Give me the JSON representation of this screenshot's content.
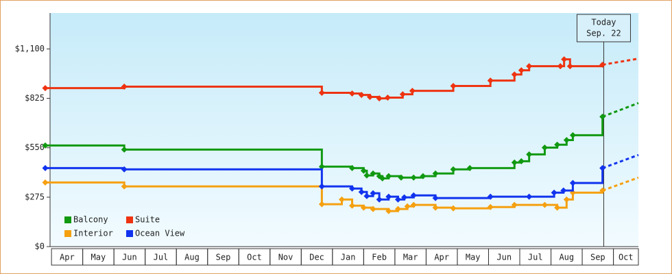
{
  "chart_data": {
    "type": "line",
    "step": true,
    "xlim": [
      -0.2,
      18.8
    ],
    "xticks": [
      {
        "value": 0.5,
        "label": "Apr"
      },
      {
        "value": 1.5,
        "label": "May"
      },
      {
        "value": 2.5,
        "label": "Jun"
      },
      {
        "value": 3.5,
        "label": "Jul"
      },
      {
        "value": 4.5,
        "label": "Aug"
      },
      {
        "value": 5.5,
        "label": "Sep"
      },
      {
        "value": 6.5,
        "label": "Oct"
      },
      {
        "value": 7.5,
        "label": "Nov"
      },
      {
        "value": 8.5,
        "label": "Dec"
      },
      {
        "value": 9.5,
        "label": "Jan"
      },
      {
        "value": 10.5,
        "label": "Feb"
      },
      {
        "value": 11.5,
        "label": "Mar"
      },
      {
        "value": 12.5,
        "label": "Apr"
      },
      {
        "value": 13.5,
        "label": "May"
      },
      {
        "value": 14.5,
        "label": "Jun"
      },
      {
        "value": 15.5,
        "label": "Jul"
      },
      {
        "value": 16.5,
        "label": "Aug"
      },
      {
        "value": 17.5,
        "label": "Sep"
      },
      {
        "value": 18.5,
        "label": "Oct"
      }
    ],
    "ylim": [
      0,
      1300
    ],
    "yticks": [
      {
        "value": 0,
        "label": "$0"
      },
      {
        "value": 275,
        "label": "$275"
      },
      {
        "value": 550,
        "label": "$550"
      },
      {
        "value": 825,
        "label": "$825"
      },
      {
        "value": 1100,
        "label": "$1,100"
      }
    ],
    "annotation": {
      "x": 17.69,
      "lines": [
        "Today",
        "Sep. 22"
      ]
    },
    "series": [
      {
        "name": "Balcony",
        "color": "#119911",
        "x": [
          -0.2,
          2.33,
          8.66,
          9.63,
          10.0,
          10.1,
          10.3,
          10.5,
          10.6,
          10.8,
          11.2,
          11.6,
          11.9,
          12.3,
          12.87,
          13.4,
          14.83,
          15.05,
          15.3,
          15.8,
          16.2,
          16.5,
          16.7,
          17.65
        ],
        "values": [
          563,
          540,
          445,
          437,
          422,
          396,
          407,
          392,
          380,
          392,
          384,
          384,
          392,
          407,
          430,
          437,
          468,
          475,
          513,
          551,
          567,
          593,
          620,
          723
        ],
        "forecast": 799
      },
      {
        "name": "Suite",
        "color": "#ee3311",
        "x": [
          -0.2,
          2.33,
          8.66,
          9.63,
          9.93,
          10.2,
          10.5,
          10.77,
          11.25,
          11.56,
          12.87,
          14.06,
          14.83,
          15.05,
          15.3,
          16.3,
          16.42,
          16.61,
          17.65
        ],
        "values": [
          882,
          890,
          856,
          852,
          844,
          833,
          825,
          829,
          848,
          867,
          894,
          924,
          958,
          981,
          1004,
          1004,
          1042,
          1004,
          1012
        ],
        "forecast": 1046
      },
      {
        "name": "Interior",
        "color": "#f5a010",
        "x": [
          -0.2,
          2.33,
          8.66,
          9.3,
          9.63,
          10.0,
          10.3,
          10.8,
          11.1,
          11.4,
          11.6,
          12.3,
          12.87,
          14.06,
          14.83,
          15.8,
          16.2,
          16.5,
          16.7,
          17.65
        ],
        "values": [
          357,
          335,
          236,
          262,
          228,
          217,
          209,
          198,
          209,
          224,
          232,
          217,
          213,
          220,
          232,
          232,
          217,
          262,
          300,
          312
        ],
        "forecast": 384
      },
      {
        "name": "Ocean View",
        "color": "#1133ee",
        "x": [
          -0.2,
          2.33,
          8.66,
          9.63,
          9.93,
          10.1,
          10.3,
          10.5,
          10.8,
          11.1,
          11.3,
          11.6,
          12.3,
          14.06,
          15.3,
          16.1,
          16.4,
          16.7,
          17.65
        ],
        "values": [
          437,
          430,
          335,
          323,
          304,
          281,
          297,
          262,
          278,
          262,
          274,
          285,
          270,
          278,
          278,
          300,
          312,
          354,
          437
        ],
        "forecast": 510
      }
    ]
  }
}
